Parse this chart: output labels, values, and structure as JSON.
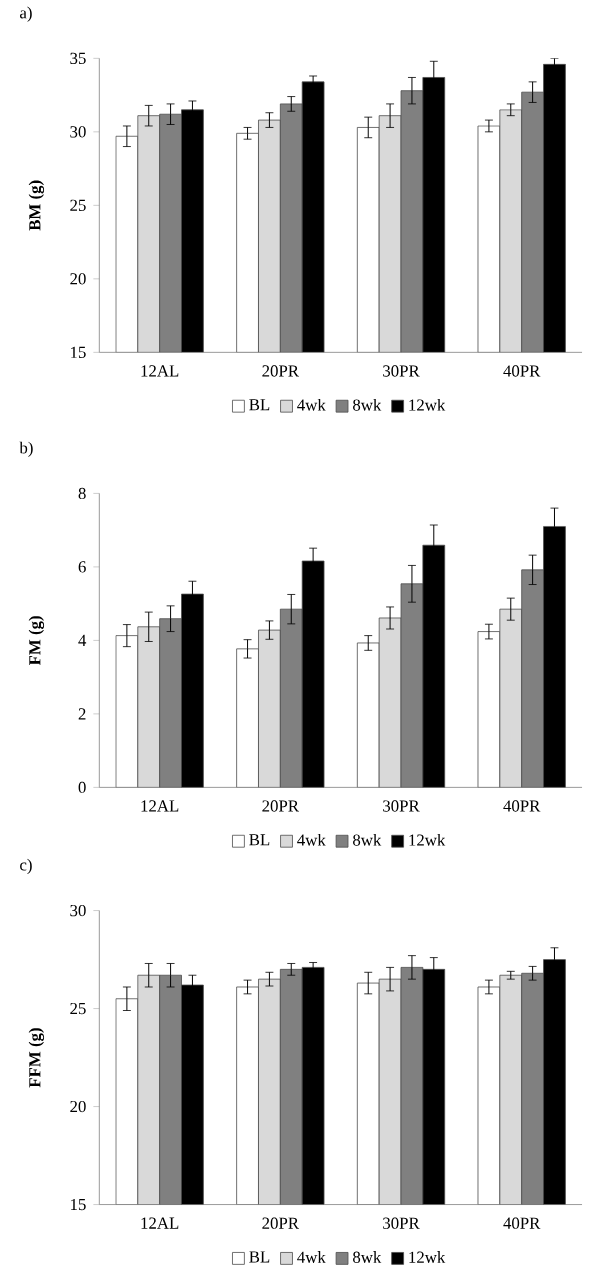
{
  "chart_data": [
    {
      "type": "bar",
      "title": "a)",
      "ylabel": "BM (g)",
      "categories": [
        "12AL",
        "20PR",
        "30PR",
        "40PR"
      ],
      "ylim": [
        15,
        35
      ],
      "yticks": [
        15,
        20,
        25,
        30,
        35
      ],
      "legend": "bottom",
      "series": [
        {
          "name": "BL",
          "color": "#ffffff",
          "values": [
            29.7,
            29.9,
            30.3,
            30.4
          ],
          "errors": [
            0.7,
            0.4,
            0.7,
            0.4
          ]
        },
        {
          "name": "4wk",
          "color": "#d9d9d9",
          "values": [
            31.1,
            30.8,
            31.1,
            31.5
          ],
          "errors": [
            0.7,
            0.5,
            0.8,
            0.4
          ]
        },
        {
          "name": "8wk",
          "color": "#808080",
          "values": [
            31.2,
            31.9,
            32.8,
            32.7
          ],
          "errors": [
            0.7,
            0.5,
            0.9,
            0.7
          ]
        },
        {
          "name": "12wk",
          "color": "#000000",
          "values": [
            31.5,
            33.4,
            33.7,
            34.6
          ],
          "errors": [
            0.6,
            0.4,
            1.1,
            0.4
          ]
        }
      ]
    },
    {
      "type": "bar",
      "title": "b)",
      "ylabel": "FM (g)",
      "categories": [
        "12AL",
        "20PR",
        "30PR",
        "40PR"
      ],
      "ylim": [
        0,
        8
      ],
      "yticks": [
        0,
        2,
        4,
        6,
        8
      ],
      "legend": "bottom",
      "series": [
        {
          "name": "BL",
          "color": "#ffffff",
          "values": [
            4.13,
            3.77,
            3.93,
            4.24
          ],
          "errors": [
            0.3,
            0.25,
            0.2,
            0.2
          ]
        },
        {
          "name": "4wk",
          "color": "#d9d9d9",
          "values": [
            4.37,
            4.28,
            4.61,
            4.85
          ],
          "errors": [
            0.4,
            0.25,
            0.3,
            0.3
          ]
        },
        {
          "name": "8wk",
          "color": "#808080",
          "values": [
            4.59,
            4.85,
            5.54,
            5.92
          ],
          "errors": [
            0.35,
            0.4,
            0.5,
            0.4
          ]
        },
        {
          "name": "12wk",
          "color": "#000000",
          "values": [
            5.26,
            6.16,
            6.59,
            7.1
          ],
          "errors": [
            0.35,
            0.35,
            0.55,
            0.5
          ]
        }
      ]
    },
    {
      "type": "bar",
      "title": "c)",
      "ylabel": "FFM (g)",
      "categories": [
        "12AL",
        "20PR",
        "30PR",
        "40PR"
      ],
      "ylim": [
        15,
        30
      ],
      "yticks": [
        15,
        20,
        25,
        30
      ],
      "legend": "bottom",
      "series": [
        {
          "name": "BL",
          "color": "#ffffff",
          "values": [
            25.5,
            26.1,
            26.3,
            26.1
          ],
          "errors": [
            0.6,
            0.35,
            0.55,
            0.35
          ]
        },
        {
          "name": "4wk",
          "color": "#d9d9d9",
          "values": [
            26.7,
            26.5,
            26.5,
            26.7
          ],
          "errors": [
            0.6,
            0.35,
            0.6,
            0.2
          ]
        },
        {
          "name": "8wk",
          "color": "#808080",
          "values": [
            26.7,
            27.0,
            27.1,
            26.8
          ],
          "errors": [
            0.6,
            0.3,
            0.6,
            0.35
          ]
        },
        {
          "name": "12wk",
          "color": "#000000",
          "values": [
            26.2,
            27.1,
            27.0,
            27.5
          ],
          "errors": [
            0.5,
            0.25,
            0.6,
            0.6
          ]
        }
      ]
    }
  ]
}
